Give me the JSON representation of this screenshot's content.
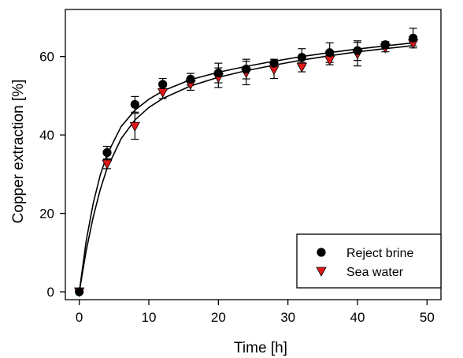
{
  "chart_data": {
    "type": "scatter",
    "xlabel": "Time [h]",
    "ylabel": "Copper extraction [%]",
    "xlim": [
      -2,
      52
    ],
    "ylim": [
      -2,
      72
    ],
    "xticks": [
      0,
      10,
      20,
      30,
      40,
      50
    ],
    "yticks": [
      0,
      20,
      40,
      60
    ],
    "grid": false,
    "legend_position": "bottom-right",
    "series": [
      {
        "name": "Reject brine",
        "marker": "circle",
        "color": "#000000",
        "x": [
          0,
          4,
          8,
          12,
          16,
          20,
          24,
          28,
          32,
          36,
          40,
          44,
          48
        ],
        "y": [
          0,
          35.5,
          47.8,
          52.9,
          54.2,
          55.8,
          56.8,
          58.3,
          59.8,
          61.0,
          61.5,
          63.0,
          64.7
        ],
        "err": [
          0,
          1.6,
          2.0,
          1.5,
          1.5,
          2.5,
          2.5,
          1.0,
          2.2,
          2.5,
          2.5,
          0.8,
          2.5
        ]
      },
      {
        "name": "Sea water",
        "marker": "triangle-down",
        "color": "#e01818",
        "x": [
          0,
          4,
          8,
          12,
          16,
          20,
          24,
          28,
          32,
          36,
          40,
          44,
          48
        ],
        "y": [
          0,
          32.6,
          42.2,
          50.8,
          52.9,
          54.6,
          55.8,
          56.6,
          57.3,
          59.1,
          60.6,
          62.2,
          63.3
        ],
        "err": [
          0,
          1.2,
          3.3,
          1.5,
          1.5,
          2.5,
          3.0,
          2.2,
          1.2,
          1.2,
          3.0,
          1.0,
          0.6
        ]
      }
    ],
    "fit_curves": [
      {
        "series": "Reject brine",
        "color": "#000000",
        "x": [
          0,
          1,
          2,
          3,
          4,
          6,
          8,
          10,
          12,
          16,
          20,
          24,
          28,
          32,
          36,
          40,
          44,
          48
        ],
        "y": [
          0,
          13.0,
          22.5,
          29.7,
          35.0,
          42.1,
          46.3,
          49.1,
          51.2,
          54.1,
          56.0,
          57.5,
          58.8,
          60.0,
          61.0,
          61.9,
          62.7,
          63.5
        ]
      },
      {
        "series": "Sea water",
        "color": "#000000",
        "x": [
          0,
          1,
          2,
          3,
          4,
          6,
          8,
          10,
          12,
          16,
          20,
          24,
          28,
          32,
          36,
          40,
          44,
          48
        ],
        "y": [
          0,
          10.5,
          19.0,
          26.0,
          31.5,
          39.0,
          43.8,
          47.0,
          49.3,
          52.5,
          54.7,
          56.4,
          57.8,
          59.1,
          60.2,
          61.2,
          62.0,
          62.8
        ]
      }
    ]
  }
}
